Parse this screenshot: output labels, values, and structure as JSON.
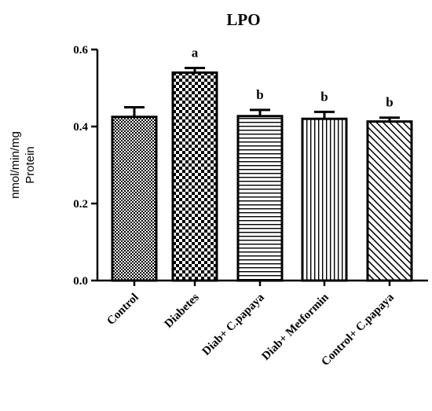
{
  "chart_data": {
    "type": "bar",
    "title": "LPO",
    "ylabel_lines": [
      "nmol/min/mg",
      "Protein"
    ],
    "xlabel": "",
    "ylim": [
      0,
      0.6
    ],
    "yticks": [
      "0.0",
      "0.2",
      "0.4",
      "0.6"
    ],
    "categories": [
      "Control",
      "Diabetes",
      "Diab+ C.papaya",
      "Diab+ Metformin",
      "Control+ C.papaya"
    ],
    "values": [
      0.425,
      0.54,
      0.427,
      0.42,
      0.413
    ],
    "errors": [
      0.025,
      0.012,
      0.016,
      0.018,
      0.01
    ],
    "annotations": [
      "",
      "a",
      "b",
      "b",
      "b"
    ],
    "patterns": [
      "fine-checker",
      "large-checker",
      "horizontal-lines",
      "vertical-lines",
      "diagonal-lines"
    ],
    "grid": false,
    "bar_color": "#000000"
  }
}
